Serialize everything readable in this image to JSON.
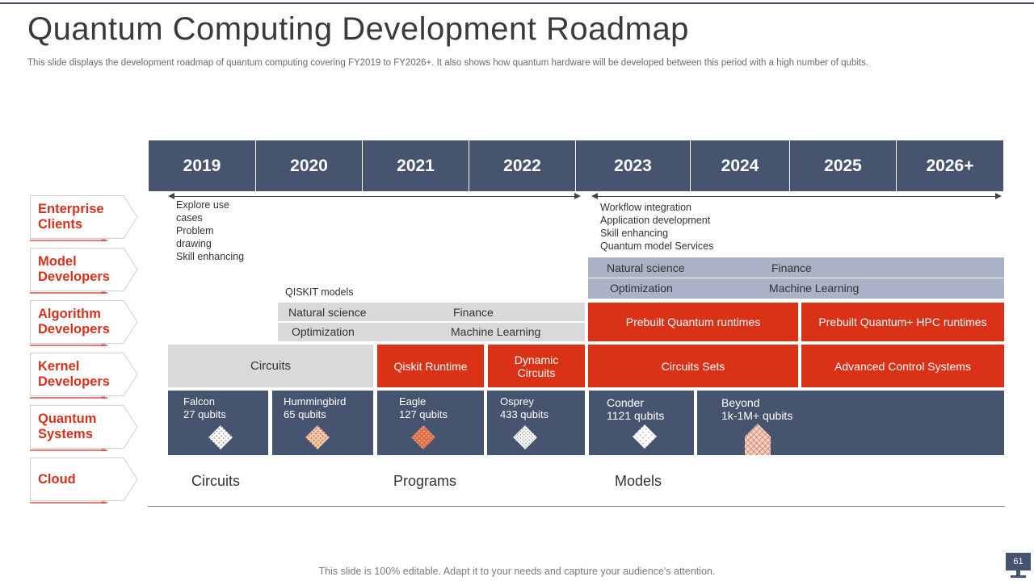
{
  "slide": {
    "title": "Quantum Computing Development Roadmap",
    "subtitle": "This slide displays the development roadmap of quantum computing covering FY2019 to FY2026+. It also shows how quantum hardware will be developed between this period with a high number of qubits.",
    "footer": "This slide is 100% editable. Adapt it to your needs and capture your audience's attention.",
    "page_number": "61"
  },
  "years": [
    "2019",
    "2020",
    "2021",
    "2022",
    "2023",
    "2024",
    "2025",
    "2026+"
  ],
  "row_labels": [
    {
      "line1": "Enterprise",
      "line2": "Clients"
    },
    {
      "line1": "Model",
      "line2": "Developers"
    },
    {
      "line1": "Algorithm",
      "line2": "Developers"
    },
    {
      "line1": "Kernel",
      "line2": "Developers"
    },
    {
      "line1": "Quantum",
      "line2": "Systems"
    },
    {
      "line1": "Cloud",
      "line2": ""
    }
  ],
  "enterprise": {
    "early": [
      "Explore use",
      "cases",
      "Problem",
      "drawing",
      "Skill enhancing"
    ],
    "late": [
      "Workflow integration",
      "Application development",
      "Skill enhancing",
      "Quantum model Services"
    ]
  },
  "models": {
    "early_heading": "QISKIT models",
    "early": [
      "Natural science",
      "Finance",
      "Optimization",
      "Machine Learning"
    ],
    "late": [
      "Natural science",
      "Finance",
      "Optimization",
      "Machine Learning"
    ]
  },
  "runtimes": [
    "Prebuilt Quantum runtimes",
    "Prebuilt Quantum+ HPC runtimes"
  ],
  "kernel": {
    "circuits": "Circuits",
    "qiskit_runtime": "Qiskit Runtime",
    "dynamic_circuits_1": "Dynamic",
    "dynamic_circuits_2": "Circuits",
    "circuit_sets": "Circuits Sets",
    "advanced": "Advanced Control Systems"
  },
  "systems": [
    {
      "name": "Falcon",
      "qubits": "27 qubits",
      "color": "#ffffff"
    },
    {
      "name": "Hummingbird",
      "qubits": "65 qubits",
      "color": "#f2c6a6"
    },
    {
      "name": "Eagle",
      "qubits": "127 qubits",
      "color": "#e0704a"
    },
    {
      "name": "Osprey",
      "qubits": "433 qubits",
      "color": "#ffffff"
    },
    {
      "name": "Conder",
      "qubits": "1121 qubits",
      "color": "#ffffff"
    },
    {
      "name": "Beyond",
      "qubits": "1k-1M+ qubits",
      "color": "#f2d0c4"
    }
  ],
  "cloud": [
    "Circuits",
    "Programs",
    "Models"
  ],
  "colors": {
    "navy": "#475470",
    "red": "#d93217",
    "accent_red": "#d3321d",
    "light_gray": "#d9d9d9",
    "blue_gray": "#a9b2c6"
  }
}
